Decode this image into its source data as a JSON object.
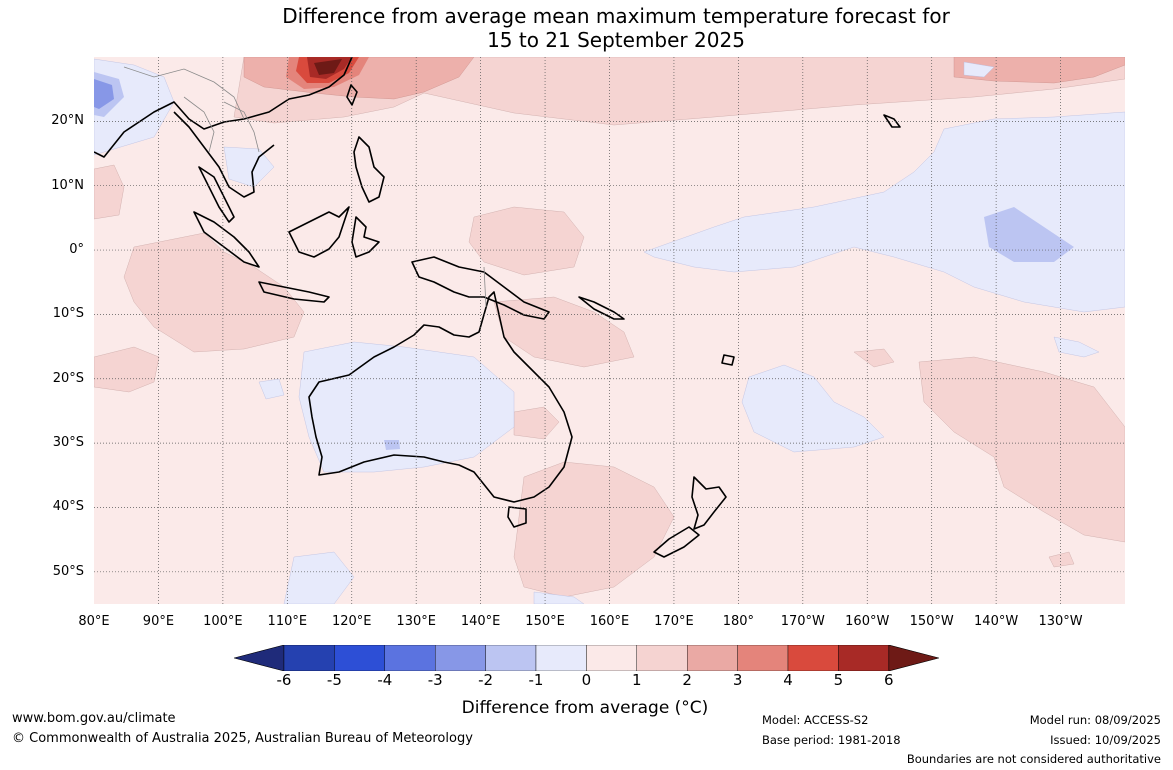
{
  "title": {
    "line1": "Difference from average mean maximum temperature forecast for",
    "line2": "15 to 21 September 2025"
  },
  "map": {
    "projection": "equirectangular",
    "extent": {
      "lon_min": 80,
      "lon_max": 240,
      "lat_min": -55,
      "lat_max": 30
    },
    "graticule": "dotted",
    "background_anomaly_class": "0 to 1",
    "lat_labels": [
      {
        "lat": 20,
        "text": "20°N"
      },
      {
        "lat": 10,
        "text": "10°N"
      },
      {
        "lat": 0,
        "text": "0°"
      },
      {
        "lat": -10,
        "text": "10°S"
      },
      {
        "lat": -20,
        "text": "20°S"
      },
      {
        "lat": -30,
        "text": "30°S"
      },
      {
        "lat": -40,
        "text": "40°S"
      },
      {
        "lat": -50,
        "text": "50°S"
      }
    ],
    "lon_labels": [
      {
        "lon": 80,
        "text": "80°E"
      },
      {
        "lon": 90,
        "text": "90°E"
      },
      {
        "lon": 100,
        "text": "100°E"
      },
      {
        "lon": 110,
        "text": "110°E"
      },
      {
        "lon": 120,
        "text": "120°E"
      },
      {
        "lon": 130,
        "text": "130°E"
      },
      {
        "lon": 140,
        "text": "140°E"
      },
      {
        "lon": 150,
        "text": "150°E"
      },
      {
        "lon": 160,
        "text": "160°E"
      },
      {
        "lon": 170,
        "text": "170°E"
      },
      {
        "lon": 180,
        "text": "180°"
      },
      {
        "lon": 190,
        "text": "170°W"
      },
      {
        "lon": 200,
        "text": "160°W"
      },
      {
        "lon": 210,
        "text": "150°W"
      },
      {
        "lon": 220,
        "text": "140°W"
      },
      {
        "lon": 230,
        "text": "130°W"
      }
    ]
  },
  "colorbar": {
    "label": "Difference from average (°C)",
    "ticks": [
      "-6",
      "-5",
      "-4",
      "-3",
      "-2",
      "-1",
      "0",
      "1",
      "2",
      "3",
      "4",
      "5",
      "6"
    ],
    "colors": [
      "#1f2b7a",
      "#2541b0",
      "#2d4fd6",
      "#5b73e0",
      "#8797e7",
      "#bcc5f2",
      "#e7eafb",
      "#fbe9e8",
      "#f5d3d1",
      "#eaa9a4",
      "#e4847b",
      "#d94a3d",
      "#a82a26",
      "#6e1a16"
    ]
  },
  "footer": {
    "website": "www.bom.gov.au/climate",
    "copyright": "© Commonwealth of Australia 2025, Australian Bureau of Meteorology",
    "model": "Model: ACCESS-S2",
    "base_period": "Base period: 1981-2018",
    "model_run": "Model run: 08/09/2025",
    "issued": "Issued: 10/09/2025",
    "disclaimer": "Boundaries are not considered authoritative"
  }
}
